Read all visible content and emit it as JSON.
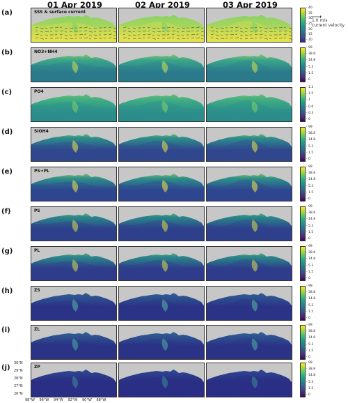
{
  "columns": [
    "01 Apr 2019",
    "02 Apr 2019",
    "03 Apr 2019"
  ],
  "rows": [
    {
      "tag": "(a)",
      "var": "SSS & surface current",
      "ticks": [
        "40",
        "35",
        "30",
        "25",
        "20",
        "15",
        "10"
      ]
    },
    {
      "tag": "(b)",
      "var": "NO3+NH4",
      "ticks": [
        "99",
        "38.8",
        "14.8",
        "5.3",
        "1.5",
        "0"
      ]
    },
    {
      "tag": "(c)",
      "var": "PO4",
      "ticks": [
        "1.2",
        "1.5",
        "1",
        "0.6",
        "0.3",
        "0"
      ]
    },
    {
      "tag": "(d)",
      "var": "SIOH4",
      "ticks": [
        "99",
        "38.8",
        "14.8",
        "5.3",
        "1.5",
        "0"
      ]
    },
    {
      "tag": "(e)",
      "var": "PS+PL",
      "ticks": [
        "99",
        "38.8",
        "14.8",
        "5.3",
        "1.5",
        "0"
      ]
    },
    {
      "tag": "(f)",
      "var": "PS",
      "ticks": [
        "99",
        "38.8",
        "14.8",
        "5.3",
        "1.5",
        "0"
      ]
    },
    {
      "tag": "(g)",
      "var": "PL",
      "ticks": [
        "99",
        "38.8",
        "14.8",
        "5.3",
        "1.5",
        "0"
      ]
    },
    {
      "tag": "(h)",
      "var": "ZS",
      "ticks": [
        "99",
        "38.8",
        "14.8",
        "5.3",
        "1.5",
        "0"
      ]
    },
    {
      "tag": "(i)",
      "var": "ZL",
      "ticks": [
        "99",
        "38.8",
        "14.8",
        "5.3",
        "1.5",
        "0"
      ]
    },
    {
      "tag": "(j)",
      "var": "ZP",
      "ticks": [
        "99",
        "38.8",
        "14.8",
        "5.3",
        "1.5",
        "0"
      ]
    }
  ],
  "legend": {
    "speed": "1.0 m/s",
    "caption": "current velocity"
  },
  "lat_ticks": [
    "30°N",
    "29°N",
    "28°N",
    "27°N",
    "26°N"
  ],
  "lon_ticks": [
    "98°W",
    "96°W",
    "94°W",
    "92°W",
    "90°W",
    "88°W"
  ],
  "colors": {
    "land": "#c7c7c7",
    "low": "#2b2f88",
    "mid": "#2a8f8a",
    "high": "#e9e34a"
  }
}
